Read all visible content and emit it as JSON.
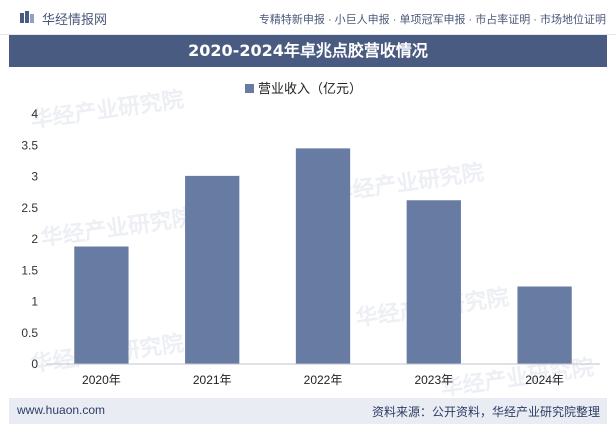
{
  "header": {
    "brand": "华经情报网",
    "tagline": "专精特新申报 · 小巨人申报 · 单项冠军申报 · 市占率证明 · 市场地位证明"
  },
  "chart_data": {
    "type": "bar",
    "title": "2020-2024年卓兆点胶营收情况",
    "categories": [
      "2020年",
      "2021年",
      "2022年",
      "2023年",
      "2024年"
    ],
    "series": [
      {
        "name": "营业收入（亿元）",
        "values": [
          1.88,
          3.01,
          3.45,
          2.62,
          1.24
        ],
        "color": "#687ca3"
      }
    ],
    "ylim": [
      0,
      4
    ],
    "yticks": [
      "0",
      "0.5",
      "1",
      "1.5",
      "2",
      "2.5",
      "3",
      "3.5",
      "4"
    ],
    "legend_position": "top-center",
    "grid": false
  },
  "watermark": {
    "text": "华经产业研究院",
    "url": "www.huaon.com"
  },
  "footer": {
    "website": "www.huaon.com",
    "source": "资料来源：公开资料，华经产业研究院整理"
  },
  "colors": {
    "header_band": "#4a5b82",
    "bar": "#687ca3",
    "footer_bg": "#e9ecf3"
  }
}
